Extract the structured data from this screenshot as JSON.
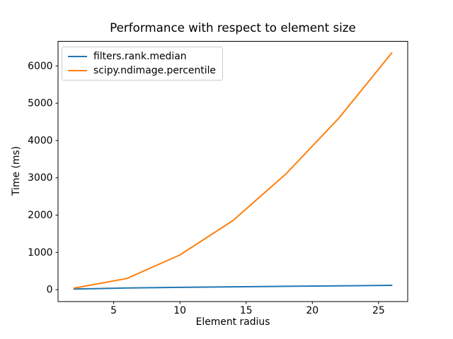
{
  "figure": {
    "background": "#ffffff",
    "spine_color": "#000000"
  },
  "chart_data": {
    "type": "line",
    "title": "Performance with respect to element size",
    "xlabel": "Element radius",
    "ylabel": "Time (ms)",
    "x": [
      2,
      6,
      10,
      14,
      18,
      22,
      26
    ],
    "series": [
      {
        "name": "filters.rank.median",
        "color": "#1f77b4",
        "values": [
          15,
          45,
          60,
          75,
          90,
          100,
          115
        ]
      },
      {
        "name": "scipy.ndimage.percentile",
        "color": "#ff7f0e",
        "values": [
          40,
          300,
          930,
          1850,
          3100,
          4600,
          6350
        ]
      }
    ],
    "xticks": [
      5,
      10,
      15,
      20,
      25
    ],
    "yticks": [
      0,
      1000,
      2000,
      3000,
      4000,
      5000,
      6000
    ],
    "xlim": [
      0.8,
      27.2
    ],
    "ylim": [
      -320,
      6660
    ],
    "grid": false,
    "legend_position": "upper left"
  }
}
